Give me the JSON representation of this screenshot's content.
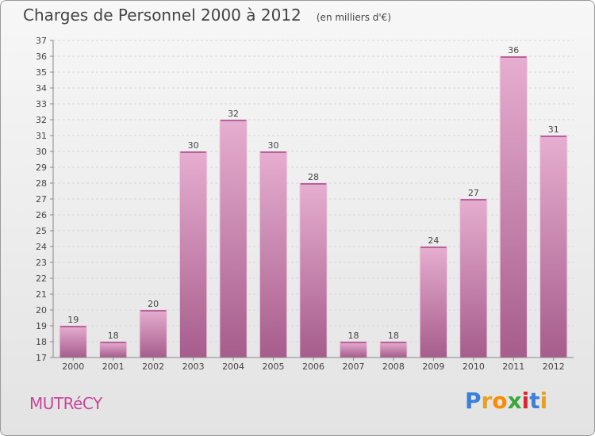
{
  "header": {
    "title": "Charges de Personnel 2000 à 2012",
    "subtitle": "(en milliers d'€)"
  },
  "footer": {
    "city": "MUTRéCY",
    "logo": "Proxiti",
    "logo_colors": [
      "#3a7fd8",
      "#e8a020",
      "#ff8a00",
      "#3aa83a",
      "#d8282e",
      "#3a7fd8",
      "#e8a020"
    ]
  },
  "colors": {
    "bar": "#c77aa8",
    "bar_light": "#e2a8cb",
    "bar_dark": "#a55a8a",
    "grid": "#d6d6d6",
    "axis": "#888888"
  },
  "chart_data": {
    "type": "bar",
    "title": "Charges de Personnel 2000 à 2012",
    "subtitle": "(en milliers d'€)",
    "categories": [
      "2000",
      "2001",
      "2002",
      "2003",
      "2004",
      "2005",
      "2006",
      "2007",
      "2008",
      "2009",
      "2010",
      "2011",
      "2012"
    ],
    "values": [
      19,
      18,
      20,
      30,
      32,
      30,
      28,
      18,
      18,
      24,
      27,
      36,
      31
    ],
    "ylim": [
      17,
      37
    ],
    "yticks": [
      17,
      18,
      19,
      20,
      21,
      22,
      23,
      24,
      25,
      26,
      27,
      28,
      29,
      30,
      31,
      32,
      33,
      34,
      35,
      36,
      37
    ],
    "grid": true,
    "legend": "none"
  }
}
